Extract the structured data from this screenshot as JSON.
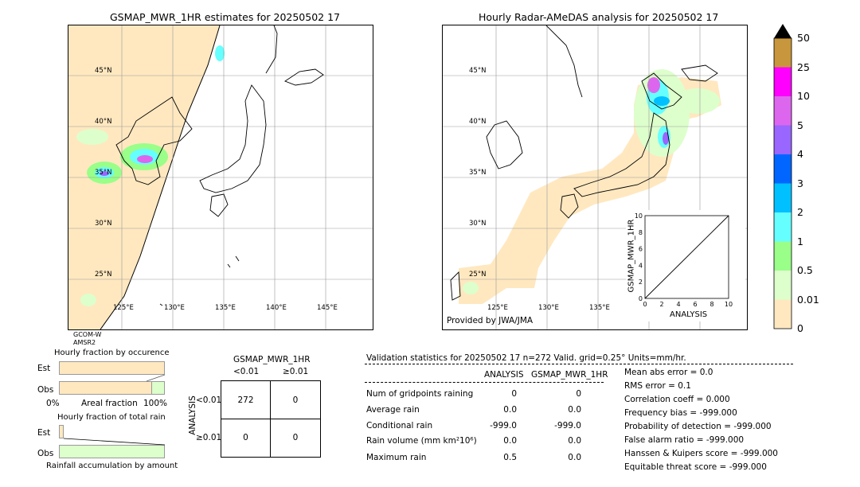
{
  "left_map": {
    "title": "GSMAP_MWR_1HR estimates for 20250502 17",
    "lat_labels": [
      "45°N",
      "40°N",
      "35°N",
      "30°N",
      "25°N"
    ],
    "lon_labels": [
      "125°E",
      "130°E",
      "135°E",
      "140°E",
      "145°E"
    ],
    "satellite_lines": [
      "GCOM-W",
      "AMSR2"
    ]
  },
  "right_map": {
    "title": "Hourly Radar-AMeDAS analysis for 20250502 17",
    "lat_labels": [
      "45°N",
      "40°N",
      "35°N",
      "30°N",
      "25°N"
    ],
    "lon_labels": [
      "125°E",
      "130°E",
      "135°E"
    ],
    "credit": "Provided by JWA/JMA"
  },
  "colorbar": {
    "levels": [
      "50",
      "25",
      "10",
      "5",
      "4",
      "3",
      "2",
      "1",
      "0.5",
      "0.01",
      "0"
    ],
    "colors": [
      "#c8963c",
      "#ff00ff",
      "#dd66ee",
      "#9966ff",
      "#0066ff",
      "#00c0ff",
      "#66ffff",
      "#99ff88",
      "#ddffcc",
      "#ffe8c0"
    ]
  },
  "chart_data": [
    {
      "type": "scatter",
      "title": "",
      "xlabel": "ANALYSIS",
      "ylabel": "GSMAP_MWR_1HR",
      "xlim": [
        0,
        10
      ],
      "ylim": [
        0,
        10
      ],
      "xticks": [
        "0",
        "2",
        "4",
        "6",
        "8",
        "10"
      ],
      "yticks": [
        "0",
        "2",
        "4",
        "6",
        "8",
        "10"
      ],
      "series": [
        {
          "x": [
            0,
            10
          ],
          "y": [
            0,
            10
          ]
        }
      ]
    },
    {
      "type": "bar",
      "title": "Hourly fraction by occurence",
      "categories": [
        "Est",
        "Obs"
      ],
      "values": [
        0,
        0.88
      ],
      "xlabel": "Areal fraction",
      "xtick_left": "0%",
      "xtick_right": "100%"
    },
    {
      "type": "bar",
      "title": "Hourly fraction of total rain",
      "categories": [
        "Est",
        "Obs"
      ],
      "values": [
        0.04,
        1.0
      ],
      "xlabel": "Rainfall accumulation by amount"
    }
  ],
  "contingency": {
    "title": "GSMAP_MWR_1HR",
    "col_headers": [
      "<0.01",
      "≥0.01"
    ],
    "row_headers": [
      "<0.01",
      "≥0.01"
    ],
    "row_axis": "ANALYSIS",
    "cells": [
      [
        "272",
        "0"
      ],
      [
        "0",
        "0"
      ]
    ]
  },
  "validation": {
    "header": "Validation statistics for 20250502 17  n=272 Valid. grid=0.25° Units=mm/hr.",
    "col_analysis": "ANALYSIS",
    "col_gsmap": "GSMAP_MWR_1HR",
    "rows": [
      {
        "label": "Num of gridpoints raining",
        "analysis": "0",
        "gsmap": "0"
      },
      {
        "label": "Average rain",
        "analysis": "0.0",
        "gsmap": "0.0"
      },
      {
        "label": "Conditional rain",
        "analysis": "-999.0",
        "gsmap": "-999.0"
      },
      {
        "label": "Rain volume (mm km²10⁶)",
        "analysis": "0.0",
        "gsmap": "0.0"
      },
      {
        "label": "Maximum rain",
        "analysis": "0.5",
        "gsmap": "0.0"
      }
    ],
    "scores": [
      "Mean abs error =    0.0",
      "RMS error =    0.1",
      "Correlation coeff =  0.000",
      "Frequency bias = -999.000",
      "Probability of detection = -999.000",
      "False alarm ratio = -999.000",
      "Hanssen & Kuipers score = -999.000",
      "Equitable threat score = -999.000"
    ]
  }
}
